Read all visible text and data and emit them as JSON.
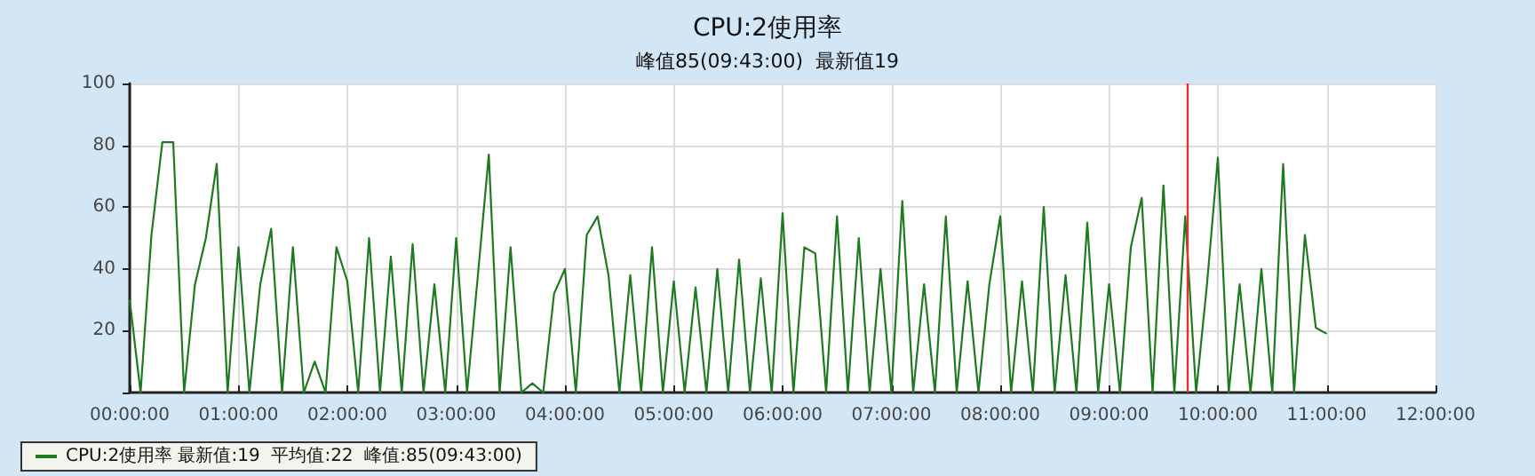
{
  "chart_data": {
    "type": "line",
    "title": "CPU:2使用率",
    "subtitle": "峰值85(09:43:00)  最新值19",
    "x": [
      0,
      0.1,
      0.2,
      0.3,
      0.4,
      0.5,
      0.6,
      0.7,
      0.8,
      0.9,
      1,
      1.1,
      1.2,
      1.3,
      1.4,
      1.5,
      1.6,
      1.7,
      1.8,
      1.9,
      2,
      2.1,
      2.2,
      2.3,
      2.4,
      2.5,
      2.6,
      2.7,
      2.8,
      2.9,
      3,
      3.1,
      3.2,
      3.3,
      3.4,
      3.5,
      3.6,
      3.7,
      3.8,
      3.9,
      4,
      4.1,
      4.2,
      4.3,
      4.4,
      4.5,
      4.6,
      4.7,
      4.8,
      4.9,
      5,
      5.1,
      5.2,
      5.3,
      5.4,
      5.5,
      5.6,
      5.7,
      5.8,
      5.9,
      6,
      6.1,
      6.2,
      6.3,
      6.4,
      6.5,
      6.6,
      6.7,
      6.8,
      6.9,
      7,
      7.1,
      7.2,
      7.3,
      7.4,
      7.5,
      7.6,
      7.7,
      7.8,
      7.9,
      8,
      8.1,
      8.2,
      8.3,
      8.4,
      8.5,
      8.6,
      8.7,
      8.8,
      8.9,
      9,
      9.1,
      9.2,
      9.3,
      9.4,
      9.5,
      9.6,
      9.7,
      9.8,
      9.9,
      10,
      10.1,
      10.2,
      10.3,
      10.4,
      10.5,
      10.6,
      10.7,
      10.8,
      10.9,
      11
    ],
    "series": [
      {
        "name": "CPU:2使用率 最新值:19  平均值:22  峰值:85(09:43:00)",
        "color": "#1e7a1e",
        "values": [
          30,
          0,
          51,
          81,
          81,
          0,
          35,
          50,
          74,
          0,
          47,
          0,
          35,
          53,
          0,
          47,
          0,
          10,
          0,
          47,
          36,
          0,
          50,
          0,
          44,
          0,
          48,
          0,
          35,
          0,
          50,
          0,
          38,
          77,
          0,
          47,
          0,
          3,
          0,
          32,
          40,
          0,
          51,
          57,
          38,
          0,
          38,
          0,
          47,
          0,
          36,
          0,
          34,
          0,
          40,
          0,
          43,
          0,
          37,
          0,
          58,
          0,
          47,
          45,
          0,
          57,
          0,
          50,
          0,
          40,
          0,
          62,
          0,
          35,
          0,
          57,
          0,
          36,
          0,
          35,
          57,
          0,
          36,
          0,
          60,
          0,
          38,
          0,
          55,
          0,
          35,
          0,
          47,
          63,
          0,
          67,
          0,
          57,
          0,
          35,
          76,
          0,
          35,
          0,
          40,
          0,
          74,
          0,
          51,
          21,
          19
        ]
      }
    ],
    "xlim": [
      0,
      12
    ],
    "xticks": [
      {
        "value": 0,
        "label": "00:00:00"
      },
      {
        "value": 1,
        "label": "01:00:00"
      },
      {
        "value": 2,
        "label": "02:00:00"
      },
      {
        "value": 3,
        "label": "03:00:00"
      },
      {
        "value": 4,
        "label": "04:00:00"
      },
      {
        "value": 5,
        "label": "05:00:00"
      },
      {
        "value": 6,
        "label": "06:00:00"
      },
      {
        "value": 7,
        "label": "07:00:00"
      },
      {
        "value": 8,
        "label": "08:00:00"
      },
      {
        "value": 9,
        "label": "09:00:00"
      },
      {
        "value": 10,
        "label": "10:00:00"
      },
      {
        "value": 11,
        "label": "11:00:00"
      },
      {
        "value": 12,
        "label": "12:00:00"
      }
    ],
    "ylim": [
      0,
      100
    ],
    "yticks": [
      {
        "value": 0,
        "label": null
      },
      20,
      40,
      60,
      80,
      100
    ],
    "ref_lines": [
      {
        "axis": "x",
        "value": 9.72,
        "color": "#e53030"
      }
    ],
    "grid": true,
    "legend": "bottom left",
    "marker": "none",
    "line_style": "solid"
  }
}
